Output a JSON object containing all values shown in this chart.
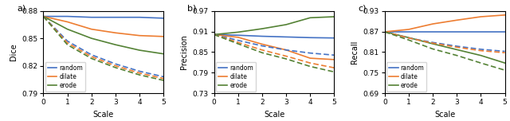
{
  "x": [
    0,
    1,
    2,
    3,
    4,
    5
  ],
  "panels": [
    {
      "label": "a)",
      "ylabel": "Dice",
      "ylim": [
        0.79,
        0.88
      ],
      "yticks": [
        0.79,
        0.82,
        0.85,
        0.88
      ],
      "solid": {
        "random": [
          0.874,
          0.874,
          0.873,
          0.873,
          0.873,
          0.872
        ],
        "dilate": [
          0.874,
          0.868,
          0.86,
          0.856,
          0.853,
          0.852
        ],
        "erode": [
          0.874,
          0.86,
          0.85,
          0.843,
          0.837,
          0.833
        ]
      },
      "dashed": {
        "random": [
          0.874,
          0.847,
          0.832,
          0.822,
          0.814,
          0.808
        ],
        "dilate": [
          0.874,
          0.845,
          0.83,
          0.82,
          0.812,
          0.806
        ],
        "erode": [
          0.874,
          0.843,
          0.828,
          0.818,
          0.81,
          0.804
        ]
      }
    },
    {
      "label": "b)",
      "ylabel": "Precision",
      "ylim": [
        0.73,
        0.97
      ],
      "yticks": [
        0.73,
        0.79,
        0.85,
        0.91,
        0.97
      ],
      "solid": {
        "random": [
          0.901,
          0.899,
          0.896,
          0.894,
          0.892,
          0.891
        ],
        "dilate": [
          0.901,
          0.893,
          0.873,
          0.856,
          0.832,
          0.828
        ],
        "erode": [
          0.901,
          0.908,
          0.918,
          0.93,
          0.95,
          0.953
        ]
      },
      "dashed": {
        "random": [
          0.901,
          0.884,
          0.868,
          0.856,
          0.847,
          0.841
        ],
        "dilate": [
          0.901,
          0.878,
          0.856,
          0.838,
          0.818,
          0.804
        ],
        "erode": [
          0.901,
          0.874,
          0.848,
          0.83,
          0.808,
          0.792
        ]
      }
    },
    {
      "label": "c)",
      "ylabel": "Recall",
      "ylim": [
        0.69,
        0.93
      ],
      "yticks": [
        0.69,
        0.75,
        0.81,
        0.87,
        0.93
      ],
      "solid": {
        "random": [
          0.869,
          0.869,
          0.869,
          0.869,
          0.869,
          0.869
        ],
        "dilate": [
          0.869,
          0.876,
          0.892,
          0.903,
          0.913,
          0.918
        ],
        "erode": [
          0.869,
          0.852,
          0.834,
          0.817,
          0.8,
          0.778
        ]
      },
      "dashed": {
        "random": [
          0.869,
          0.851,
          0.838,
          0.827,
          0.818,
          0.812
        ],
        "dilate": [
          0.869,
          0.851,
          0.836,
          0.824,
          0.814,
          0.808
        ],
        "erode": [
          0.869,
          0.845,
          0.819,
          0.8,
          0.778,
          0.757
        ]
      }
    }
  ],
  "colors": {
    "random": "#4472C4",
    "dilate": "#ED7D31",
    "erode": "#548235"
  },
  "keys": [
    "random",
    "dilate",
    "erode"
  ],
  "xlabel": "Scale"
}
